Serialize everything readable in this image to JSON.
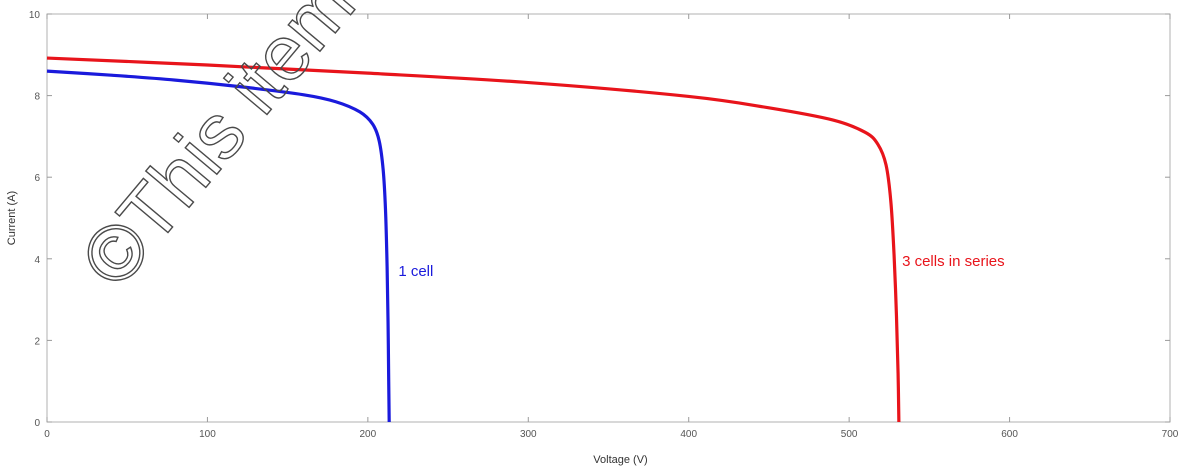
{
  "chart_data": {
    "type": "line",
    "title": "",
    "xlabel": "Voltage (V)",
    "ylabel": "Current (A)",
    "xlim": [
      0,
      700
    ],
    "ylim": [
      0,
      10
    ],
    "x_ticks": [
      0,
      100,
      200,
      300,
      400,
      500,
      600,
      700
    ],
    "y_ticks": [
      0,
      2,
      4,
      6,
      8,
      10
    ],
    "grid": false,
    "series": [
      {
        "name": "1 cell",
        "color": "#1a1adc",
        "x": [
          0,
          40,
          80,
          120,
          160,
          180,
          195,
          203,
          207,
          209.5,
          211,
          212,
          212.6,
          213,
          213.3
        ],
        "y": [
          8.6,
          8.5,
          8.38,
          8.22,
          8.02,
          7.85,
          7.6,
          7.3,
          6.9,
          6.2,
          5.2,
          3.8,
          2.4,
          1.0,
          0
        ]
      },
      {
        "name": "3 cells in series",
        "color": "#e8141b",
        "x": [
          0,
          100,
          200,
          300,
          400,
          450,
          490,
          510,
          518,
          523,
          526,
          528,
          529.5,
          530.5,
          531
        ],
        "y": [
          8.92,
          8.75,
          8.55,
          8.32,
          7.98,
          7.7,
          7.4,
          7.1,
          6.8,
          6.3,
          5.4,
          4.1,
          2.6,
          1.2,
          0
        ]
      }
    ],
    "annotations": [
      {
        "text": "1 cell",
        "x": 219,
        "y": 3.7,
        "color": "#1a1adc"
      },
      {
        "text": "3 cells in series",
        "x": 533,
        "y": 3.95,
        "color": "#e8141b"
      }
    ]
  },
  "watermark": {
    "text": "©This item is pro"
  }
}
